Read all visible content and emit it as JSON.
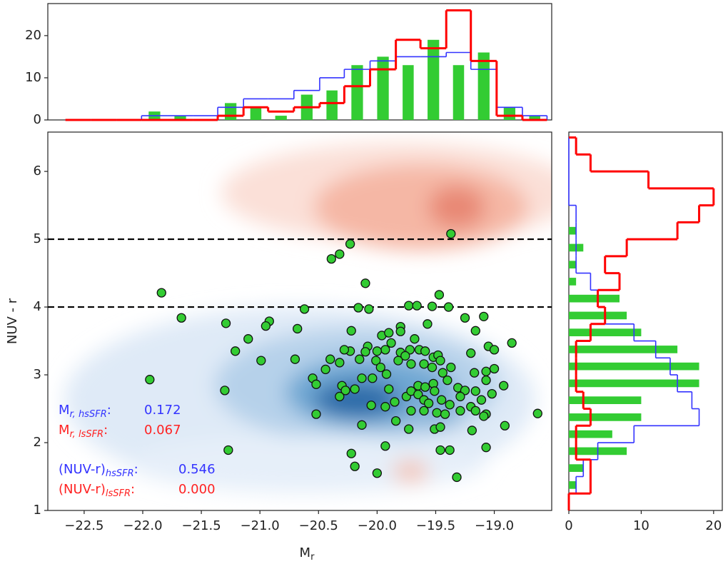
{
  "chart_data": [
    {
      "type": "scatter",
      "xlabel": "M",
      "xlabel_sub": "r",
      "ylabel": "NUV - r",
      "xlim": [
        -22.81,
        -18.51
      ],
      "ylim": [
        1,
        6.58
      ],
      "xticks": [
        {
          "value": -22.5,
          "label": "−22.5"
        },
        {
          "value": -22.0,
          "label": "−22.0"
        },
        {
          "value": -21.5,
          "label": "−21.5"
        },
        {
          "value": -21.0,
          "label": "−21.0"
        },
        {
          "value": -20.5,
          "label": "−20.5"
        },
        {
          "value": -20.0,
          "label": "−20.0"
        },
        {
          "value": -19.5,
          "label": "−19.5"
        },
        {
          "value": -19.0,
          "label": "−19.0"
        }
      ],
      "yticks": [
        1,
        2,
        3,
        4,
        5,
        6
      ],
      "hlines": [
        4,
        5
      ],
      "color": "#33cc33",
      "x": [
        -19.37,
        -20.23,
        -20.32,
        -20.39,
        -21.84,
        -20.1,
        -19.47,
        -21.67,
        -21.29,
        -20.92,
        -20.95,
        -20.68,
        -20.62,
        -20.16,
        -20.07,
        -19.73,
        -19.66,
        -19.53,
        -19.39,
        -19.25,
        -19.09,
        -19.57,
        -19.8,
        -20.22,
        -19.96,
        -19.9,
        -19.8,
        -19.16,
        -19.68,
        -19.88,
        -19.93,
        -20.0,
        -20.08,
        -20.23,
        -20.28,
        -20.1,
        -19.72,
        -19.64,
        -19.59,
        -19.8,
        -19.76,
        -19.52,
        -19.48,
        -21.1,
        -21.21,
        -20.99,
        -20.7,
        -20.4,
        -20.44,
        -20.32,
        -20.15,
        -20.01,
        -19.97,
        -19.92,
        -19.82,
        -19.71,
        -19.6,
        -19.53,
        -19.46,
        -19.37,
        -19.2,
        -19.05,
        -19.0,
        -18.85,
        -19.17,
        -19.07,
        -19.0,
        -21.94,
        -20.55,
        -20.52,
        -20.3,
        -20.27,
        -20.13,
        -20.04,
        -20.19,
        -19.9,
        -19.75,
        -19.65,
        -19.59,
        -19.52,
        -19.44,
        -19.4,
        -19.31,
        -19.25,
        -19.16,
        -19.07,
        -18.92,
        -21.3,
        -20.32,
        -19.85,
        -19.71,
        -19.65,
        -19.6,
        -19.56,
        -19.51,
        -19.45,
        -19.38,
        -19.29,
        -19.2,
        -19.11,
        -19.02,
        -20.05,
        -19.93,
        -19.71,
        -19.6,
        -19.49,
        -19.42,
        -19.29,
        -19.16,
        -19.07,
        -20.52,
        -19.84,
        -20.13,
        -19.73,
        -19.51,
        -19.46,
        -19.19,
        -19.09,
        -18.91,
        -18.63,
        -19.46,
        -19.38,
        -21.27,
        -20.22,
        -19.93,
        -19.07,
        -20.19,
        -20.0,
        -19.32
      ],
      "y": [
        5.08,
        4.93,
        4.78,
        4.71,
        4.21,
        4.35,
        4.18,
        3.84,
        3.76,
        3.79,
        3.72,
        3.68,
        3.97,
        3.99,
        3.97,
        4.02,
        4.02,
        4.01,
        4.0,
        3.84,
        3.86,
        3.75,
        3.71,
        3.65,
        3.58,
        3.62,
        3.64,
        3.65,
        3.53,
        3.47,
        3.37,
        3.35,
        3.42,
        3.35,
        3.37,
        3.34,
        3.37,
        3.37,
        3.35,
        3.33,
        3.28,
        3.26,
        3.29,
        3.53,
        3.35,
        3.21,
        3.23,
        3.23,
        3.08,
        3.18,
        3.23,
        3.21,
        3.11,
        3.01,
        3.21,
        3.16,
        3.16,
        3.11,
        3.21,
        3.11,
        3.32,
        3.42,
        3.37,
        3.47,
        3.03,
        3.05,
        3.09,
        2.93,
        2.95,
        2.86,
        2.84,
        2.77,
        2.95,
        2.95,
        2.79,
        2.79,
        2.68,
        2.84,
        2.82,
        2.87,
        3.03,
        2.92,
        2.81,
        2.77,
        2.76,
        2.92,
        2.84,
        2.77,
        2.68,
        2.6,
        2.76,
        2.71,
        2.63,
        2.58,
        2.76,
        2.63,
        2.56,
        2.68,
        2.53,
        2.63,
        2.72,
        2.55,
        2.53,
        2.47,
        2.47,
        2.44,
        2.42,
        2.47,
        2.47,
        2.42,
        2.42,
        2.32,
        2.26,
        2.2,
        2.2,
        2.23,
        2.18,
        2.39,
        2.25,
        2.43,
        1.89,
        1.89,
        1.89,
        1.84,
        1.95,
        1.93,
        1.65,
        1.55,
        1.49
      ],
      "annotations": [
        {
          "text": "M",
          "sub": "r, hsSFR",
          "sep": ":",
          "value": "0.172",
          "color": "#3333ff"
        },
        {
          "text": "M",
          "sub": "r, lsSFR",
          "sep": ":",
          "value": "0.067",
          "color": "#ff2222"
        },
        {
          "text": "(NUV-r)",
          "sub": "hsSFR",
          "sep": ":",
          "value": "0.546",
          "color": "#3333ff"
        },
        {
          "text": "(NUV-r)",
          "sub": "lsSFR",
          "sep": ":",
          "value": "0.000",
          "color": "#ff2222"
        }
      ]
    },
    {
      "type": "histogram",
      "orientation": "vertical",
      "xlim": [
        -22.81,
        -18.51
      ],
      "ylim": [
        0,
        27.6
      ],
      "yticks": [
        0,
        10,
        20
      ],
      "bins": [
        -22.66,
        -22.44,
        -22.22,
        -22.01,
        -21.79,
        -21.57,
        -21.36,
        -21.14,
        -20.93,
        -20.71,
        -20.49,
        -20.28,
        -20.06,
        -19.84,
        -19.63,
        -19.41,
        -19.2,
        -18.98,
        -18.76,
        -18.55
      ],
      "series": [
        {
          "style": "bar",
          "color": "#33cc33",
          "values": [
            0,
            0,
            0,
            2,
            1,
            0,
            4,
            3,
            1,
            6,
            7,
            13,
            15,
            13,
            19,
            13,
            16,
            3,
            1
          ]
        },
        {
          "style": "step",
          "color": "#3333ff",
          "values": [
            0,
            0,
            0,
            1,
            1,
            1,
            3,
            5,
            5,
            7,
            10,
            12,
            14,
            15,
            15,
            16,
            12,
            3,
            1
          ]
        },
        {
          "style": "step",
          "color": "#ff0000",
          "values": [
            0,
            0,
            0,
            0,
            0,
            0,
            1,
            3,
            2,
            3,
            4,
            8,
            12,
            19,
            17,
            26,
            14,
            1,
            0
          ]
        }
      ]
    },
    {
      "type": "histogram",
      "orientation": "horizontal",
      "xlim": [
        0,
        21.2
      ],
      "ylim": [
        1,
        6.58
      ],
      "xticks": [
        0,
        10,
        20
      ],
      "bins": [
        1.0,
        1.25,
        1.5,
        1.75,
        2.0,
        2.25,
        2.5,
        2.75,
        3.0,
        3.25,
        3.5,
        3.75,
        4.0,
        4.25,
        4.5,
        4.75,
        5.0,
        5.25,
        5.5,
        5.75,
        6.0,
        6.25,
        6.5
      ],
      "series": [
        {
          "style": "bar",
          "color": "#33cc33",
          "values": [
            0,
            1,
            2,
            8,
            6,
            10,
            10,
            18,
            18,
            15,
            10,
            8,
            7,
            1,
            1,
            2,
            1,
            0,
            0,
            0,
            0,
            0
          ]
        },
        {
          "style": "step",
          "color": "#3333ff",
          "values": [
            0,
            1,
            2,
            4,
            9,
            18,
            17,
            15,
            14,
            12,
            9,
            5,
            4,
            3,
            1,
            1,
            1,
            1,
            0,
            0,
            0,
            0
          ]
        },
        {
          "style": "step",
          "color": "#ff0000",
          "values": [
            0,
            3,
            3,
            1,
            1,
            3,
            2,
            1,
            1,
            1,
            3,
            5,
            4,
            7,
            5,
            8,
            15,
            18,
            20,
            11,
            3,
            1
          ]
        }
      ]
    }
  ]
}
